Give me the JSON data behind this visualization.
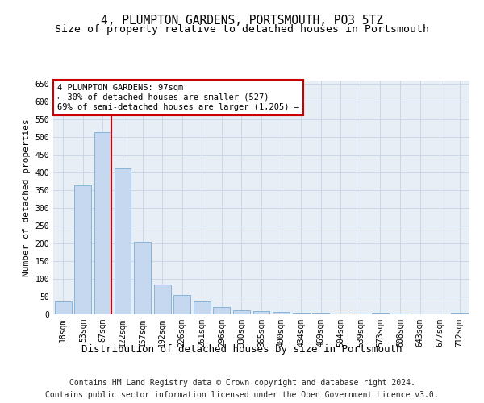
{
  "title": "4, PLUMPTON GARDENS, PORTSMOUTH, PO3 5TZ",
  "subtitle": "Size of property relative to detached houses in Portsmouth",
  "xlabel": "Distribution of detached houses by size in Portsmouth",
  "ylabel": "Number of detached properties",
  "categories": [
    "18sqm",
    "53sqm",
    "87sqm",
    "122sqm",
    "157sqm",
    "192sqm",
    "226sqm",
    "261sqm",
    "296sqm",
    "330sqm",
    "365sqm",
    "400sqm",
    "434sqm",
    "469sqm",
    "504sqm",
    "539sqm",
    "573sqm",
    "608sqm",
    "643sqm",
    "677sqm",
    "712sqm"
  ],
  "values": [
    37,
    365,
    515,
    412,
    205,
    85,
    55,
    36,
    20,
    12,
    8,
    7,
    5,
    4,
    3,
    3,
    5,
    2,
    1,
    1,
    5
  ],
  "bar_color": "#c5d8ef",
  "bar_edge_color": "#7aadd4",
  "vline_color": "#cc0000",
  "vline_x_index": 2,
  "annotation_line1": "4 PLUMPTON GARDENS: 97sqm",
  "annotation_line2": "← 30% of detached houses are smaller (527)",
  "annotation_line3": "69% of semi-detached houses are larger (1,205) →",
  "annotation_box_color": "#ffffff",
  "annotation_box_edge_color": "#cc0000",
  "ylim": [
    0,
    660
  ],
  "yticks": [
    0,
    50,
    100,
    150,
    200,
    250,
    300,
    350,
    400,
    450,
    500,
    550,
    600,
    650
  ],
  "grid_color": "#ccd8e8",
  "bg_color": "#e8eef6",
  "footer_line1": "Contains HM Land Registry data © Crown copyright and database right 2024.",
  "footer_line2": "Contains public sector information licensed under the Open Government Licence v3.0.",
  "title_fontsize": 10.5,
  "subtitle_fontsize": 9.5,
  "xlabel_fontsize": 9,
  "ylabel_fontsize": 8,
  "tick_fontsize": 7,
  "annotation_fontsize": 7.5,
  "footer_fontsize": 7
}
